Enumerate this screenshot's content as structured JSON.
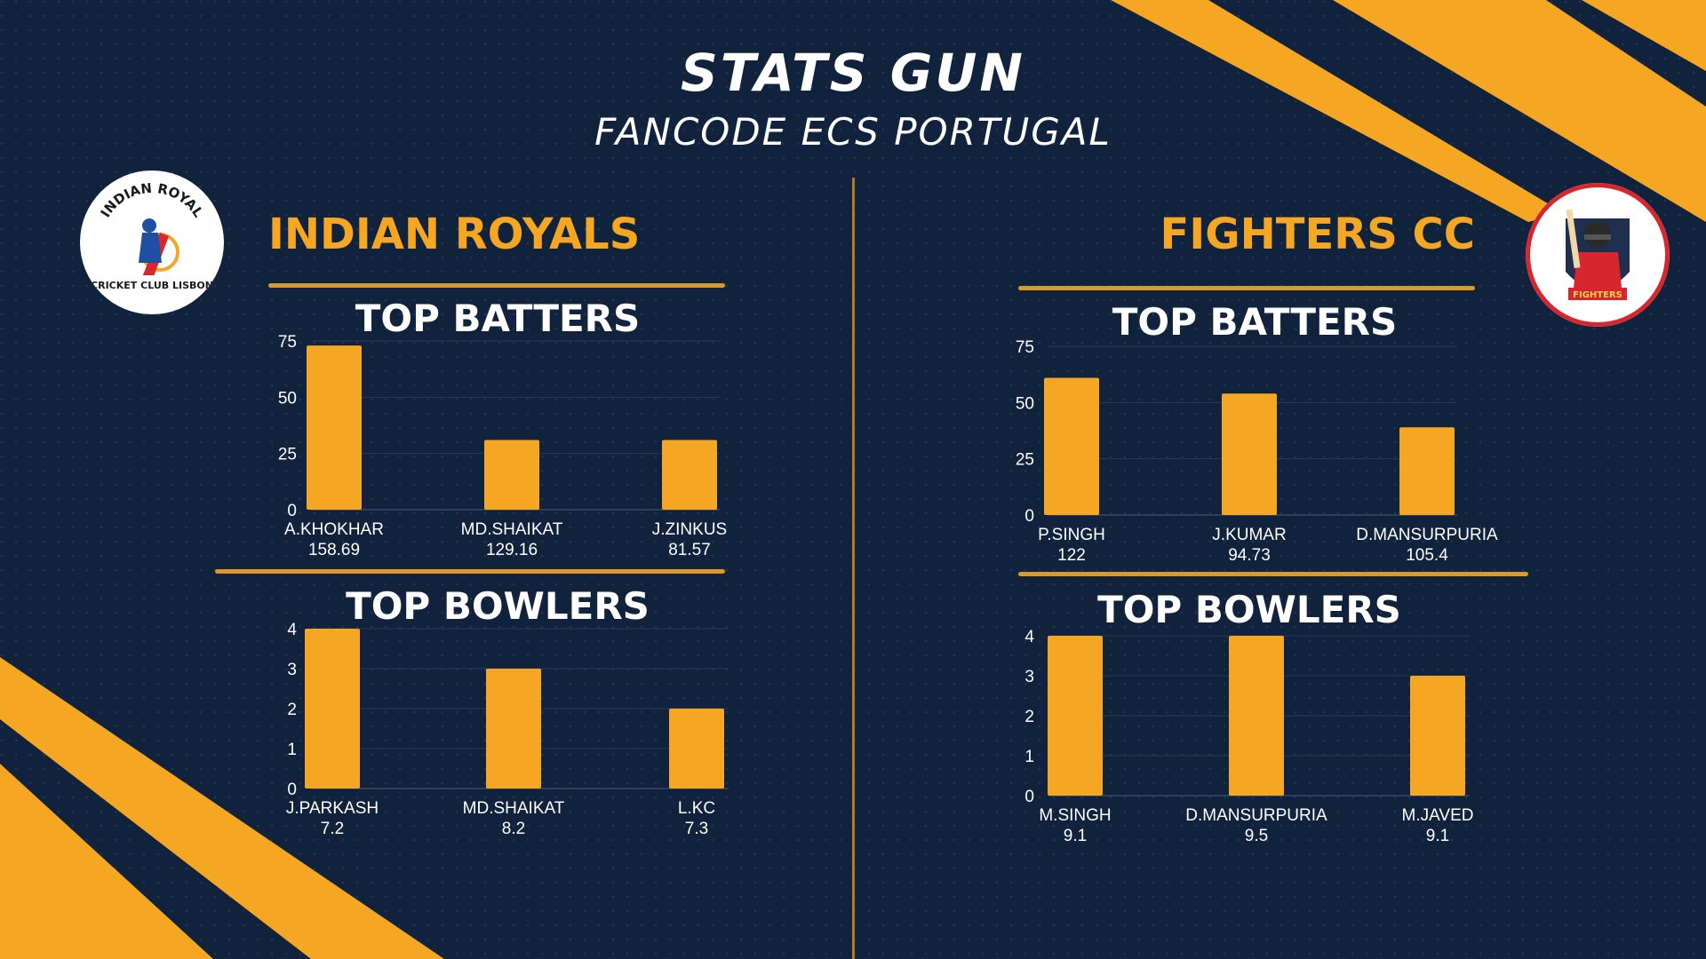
{
  "header": {
    "title": "STATS GUN",
    "subtitle": "FANCODE ECS PORTUGAL"
  },
  "colors": {
    "background": "#10223c",
    "accent": "#f5a623",
    "text": "#ffffff"
  },
  "teams": [
    {
      "name": "INDIAN ROYALS",
      "logo": {
        "icon": "cricket-club-logo",
        "top_text": "INDIAN ROYAL",
        "bottom_text": "CRICKET CLUB LISBON"
      },
      "batters_title": "TOP BATTERS",
      "bowlers_title": "TOP BOWLERS"
    },
    {
      "name": "FIGHTERS CC",
      "logo": {
        "icon": "fighters-batsman-logo",
        "badge_text": "FIGHTERS"
      },
      "batters_title": "TOP BATTERS",
      "bowlers_title": "TOP BOWLERS"
    }
  ],
  "chart_data": [
    {
      "type": "bar",
      "team": "INDIAN ROYALS",
      "title": "TOP BATTERS",
      "categories": [
        "A.KHOKHAR",
        "MD.SHAIKAT",
        "J.ZINKUS"
      ],
      "sublabels": [
        "158.69",
        "129.16",
        "81.57"
      ],
      "values": [
        73,
        31,
        31
      ],
      "ylim": [
        0,
        75
      ],
      "yticks": [
        0,
        25,
        50,
        75
      ],
      "grid": true
    },
    {
      "type": "bar",
      "team": "INDIAN ROYALS",
      "title": "TOP BOWLERS",
      "categories": [
        "J.PARKASH",
        "MD.SHAIKAT",
        "L.KC"
      ],
      "sublabels": [
        "7.2",
        "8.2",
        "7.3"
      ],
      "values": [
        4,
        3,
        2
      ],
      "ylim": [
        0,
        4
      ],
      "yticks": [
        0,
        1,
        2,
        3,
        4
      ],
      "grid": true
    },
    {
      "type": "bar",
      "team": "FIGHTERS CC",
      "title": "TOP BATTERS",
      "categories": [
        "P.SINGH",
        "J.KUMAR",
        "D.MANSURPURIA"
      ],
      "sublabels": [
        "122",
        "94.73",
        "105.4"
      ],
      "values": [
        61,
        54,
        39
      ],
      "ylim": [
        0,
        75
      ],
      "yticks": [
        0,
        25,
        50,
        75
      ],
      "grid": true
    },
    {
      "type": "bar",
      "team": "FIGHTERS CC",
      "title": "TOP BOWLERS",
      "categories": [
        "M.SINGH",
        "D.MANSURPURIA",
        "M.JAVED"
      ],
      "sublabels": [
        "9.1",
        "9.5",
        "9.1"
      ],
      "values": [
        4,
        4,
        3
      ],
      "ylim": [
        0,
        4
      ],
      "yticks": [
        0,
        1,
        2,
        3,
        4
      ],
      "grid": true
    }
  ]
}
